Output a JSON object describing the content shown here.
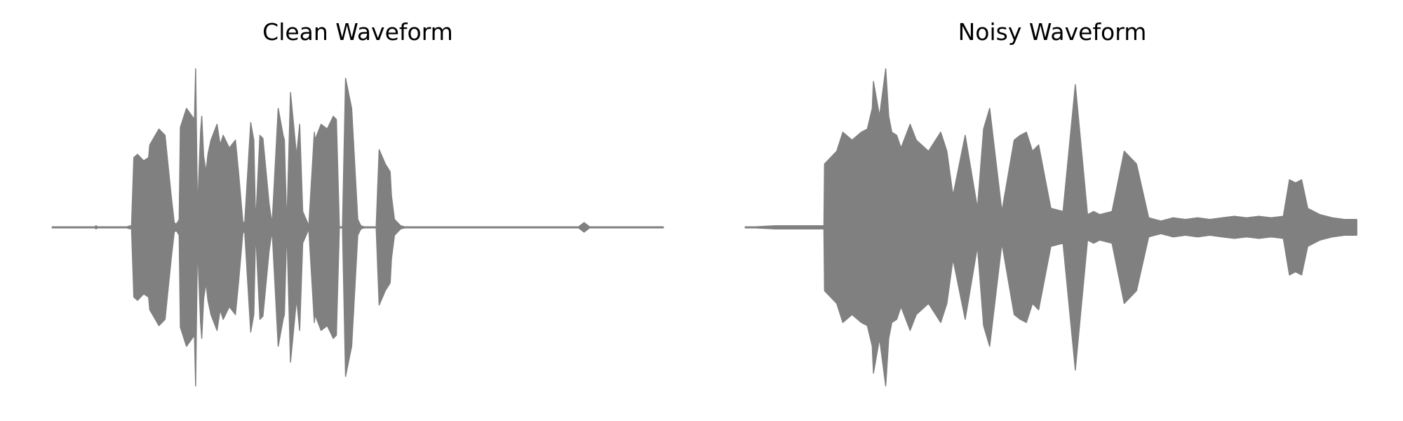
{
  "figure": {
    "panels": [
      {
        "title": "Clean Waveform"
      },
      {
        "title": "Noisy Waveform"
      }
    ]
  },
  "chart_data": [
    {
      "type": "area",
      "title": "Clean Waveform",
      "xlabel": "",
      "ylabel": "",
      "axes_visible": false,
      "grid": false,
      "color": "#808080",
      "ylim": [
        -1.0,
        1.0
      ],
      "envelope": {
        "x": [
          0.0,
          0.07,
          0.072,
          0.076,
          0.083,
          0.09,
          0.1,
          0.111,
          0.12,
          0.128,
          0.129,
          0.13,
          0.134,
          0.14,
          0.15,
          0.158,
          0.16,
          0.175,
          0.185,
          0.195,
          0.2,
          0.203,
          0.205,
          0.208,
          0.21,
          0.22,
          0.233,
          0.235,
          0.238,
          0.243,
          0.245,
          0.248,
          0.252,
          0.255,
          0.26,
          0.27,
          0.275,
          0.28,
          0.29,
          0.3,
          0.305,
          0.312,
          0.315,
          0.325,
          0.33,
          0.333,
          0.34,
          0.345,
          0.355,
          0.36,
          0.37,
          0.378,
          0.38,
          0.384,
          0.39,
          0.4,
          0.405,
          0.41,
          0.42,
          0.429,
          0.43,
          0.44,
          0.45,
          0.46,
          0.465,
          0.47,
          0.475,
          0.48,
          0.49,
          0.5,
          0.505,
          0.513,
          0.52,
          0.525,
          0.53,
          0.535,
          0.545,
          0.553,
          0.555,
          0.56,
          0.57,
          0.58,
          0.6,
          0.61,
          0.62,
          0.63,
          0.64,
          0.65,
          0.7,
          0.8,
          0.85,
          0.86,
          0.87,
          0.88,
          0.89,
          0.95,
          1.0
        ],
        "upper": [
          0.0,
          0.0,
          0.01,
          0.0,
          0.0,
          0.0,
          0.0,
          0.0,
          0.0,
          0.01,
          0.0,
          0.0,
          0.44,
          0.46,
          0.42,
          0.44,
          0.52,
          0.62,
          0.58,
          0.2,
          0.03,
          0.02,
          0.03,
          0.05,
          0.63,
          0.75,
          0.68,
          1.0,
          0.1,
          0.6,
          0.7,
          0.45,
          0.35,
          0.46,
          0.55,
          0.65,
          0.52,
          0.58,
          0.5,
          0.55,
          0.35,
          0.04,
          0.02,
          0.66,
          0.55,
          0.02,
          0.58,
          0.56,
          0.15,
          0.02,
          0.75,
          0.58,
          0.55,
          0.0,
          0.85,
          0.45,
          0.65,
          0.1,
          0.01,
          0.6,
          0.55,
          0.65,
          0.62,
          0.7,
          0.68,
          0.0,
          0.0,
          0.94,
          0.75,
          0.05,
          0.01,
          0.0,
          0.0,
          0.0,
          0.0,
          0.49,
          0.4,
          0.35,
          0.2,
          0.05,
          0.01,
          0.0,
          0.0,
          0.0,
          0.0,
          0.0,
          0.0,
          0.0,
          0.0,
          0.0,
          0.0,
          0.0,
          0.03,
          0.0,
          0.0,
          0.0,
          0.0
        ],
        "lower": [
          0.0,
          0.0,
          -0.01,
          0.0,
          0.0,
          0.0,
          0.0,
          0.0,
          0.0,
          -0.01,
          0.0,
          0.0,
          -0.44,
          -0.46,
          -0.42,
          -0.44,
          -0.52,
          -0.62,
          -0.58,
          -0.2,
          -0.03,
          -0.02,
          -0.03,
          -0.05,
          -0.63,
          -0.75,
          -0.68,
          -1.0,
          -0.1,
          -0.6,
          -0.7,
          -0.45,
          -0.35,
          -0.46,
          -0.55,
          -0.65,
          -0.52,
          -0.58,
          -0.5,
          -0.55,
          -0.35,
          -0.04,
          -0.02,
          -0.66,
          -0.55,
          -0.02,
          -0.58,
          -0.56,
          -0.15,
          -0.02,
          -0.75,
          -0.58,
          -0.55,
          0.0,
          -0.85,
          -0.45,
          -0.65,
          -0.1,
          -0.01,
          -0.6,
          -0.55,
          -0.65,
          -0.62,
          -0.7,
          -0.68,
          0.0,
          0.0,
          -0.94,
          -0.75,
          -0.05,
          -0.01,
          0.0,
          0.0,
          0.0,
          0.0,
          -0.49,
          -0.4,
          -0.35,
          -0.2,
          -0.05,
          -0.01,
          0.0,
          0.0,
          0.0,
          0.0,
          0.0,
          0.0,
          0.0,
          0.0,
          0.0,
          0.0,
          0.0,
          -0.03,
          0.0,
          0.0,
          0.0,
          0.0
        ]
      }
    },
    {
      "type": "area",
      "title": "Noisy Waveform",
      "xlabel": "",
      "ylabel": "",
      "axes_visible": false,
      "grid": false,
      "color": "#808080",
      "ylim": [
        -1.0,
        1.0
      ],
      "envelope": {
        "x": [
          0.0,
          0.05,
          0.12,
          0.129,
          0.13,
          0.135,
          0.15,
          0.16,
          0.175,
          0.19,
          0.2,
          0.208,
          0.21,
          0.22,
          0.23,
          0.235,
          0.24,
          0.248,
          0.255,
          0.27,
          0.28,
          0.3,
          0.32,
          0.33,
          0.34,
          0.36,
          0.38,
          0.39,
          0.4,
          0.42,
          0.44,
          0.45,
          0.46,
          0.47,
          0.48,
          0.5,
          0.52,
          0.54,
          0.56,
          0.57,
          0.58,
          0.6,
          0.62,
          0.64,
          0.66,
          0.67,
          0.68,
          0.7,
          0.72,
          0.74,
          0.76,
          0.78,
          0.8,
          0.82,
          0.84,
          0.86,
          0.88,
          0.89,
          0.9,
          0.91,
          0.92,
          0.94,
          0.96,
          0.98,
          1.0
        ],
        "upper": [
          0.0,
          0.01,
          0.01,
          0.01,
          0.4,
          0.42,
          0.48,
          0.6,
          0.55,
          0.6,
          0.62,
          0.75,
          0.92,
          0.7,
          1.0,
          0.7,
          0.6,
          0.58,
          0.5,
          0.65,
          0.55,
          0.48,
          0.6,
          0.48,
          0.2,
          0.58,
          0.12,
          0.62,
          0.75,
          0.1,
          0.55,
          0.58,
          0.6,
          0.48,
          0.52,
          0.12,
          0.1,
          0.9,
          0.08,
          0.1,
          0.08,
          0.1,
          0.48,
          0.4,
          0.06,
          0.05,
          0.04,
          0.06,
          0.05,
          0.06,
          0.05,
          0.06,
          0.07,
          0.06,
          0.07,
          0.06,
          0.07,
          0.3,
          0.28,
          0.3,
          0.12,
          0.08,
          0.06,
          0.05,
          0.05
        ],
        "lower": [
          0.0,
          -0.01,
          -0.01,
          -0.01,
          -0.4,
          -0.42,
          -0.48,
          -0.6,
          -0.55,
          -0.6,
          -0.62,
          -0.75,
          -0.92,
          -0.7,
          -1.0,
          -0.7,
          -0.6,
          -0.58,
          -0.5,
          -0.65,
          -0.55,
          -0.48,
          -0.6,
          -0.48,
          -0.2,
          -0.58,
          -0.12,
          -0.62,
          -0.75,
          -0.1,
          -0.55,
          -0.58,
          -0.6,
          -0.48,
          -0.52,
          -0.12,
          -0.1,
          -0.9,
          -0.08,
          -0.1,
          -0.08,
          -0.1,
          -0.48,
          -0.4,
          -0.06,
          -0.05,
          -0.04,
          -0.06,
          -0.05,
          -0.06,
          -0.05,
          -0.06,
          -0.07,
          -0.06,
          -0.07,
          -0.06,
          -0.07,
          -0.3,
          -0.28,
          -0.3,
          -0.12,
          -0.08,
          -0.06,
          -0.05,
          -0.05
        ]
      }
    }
  ]
}
